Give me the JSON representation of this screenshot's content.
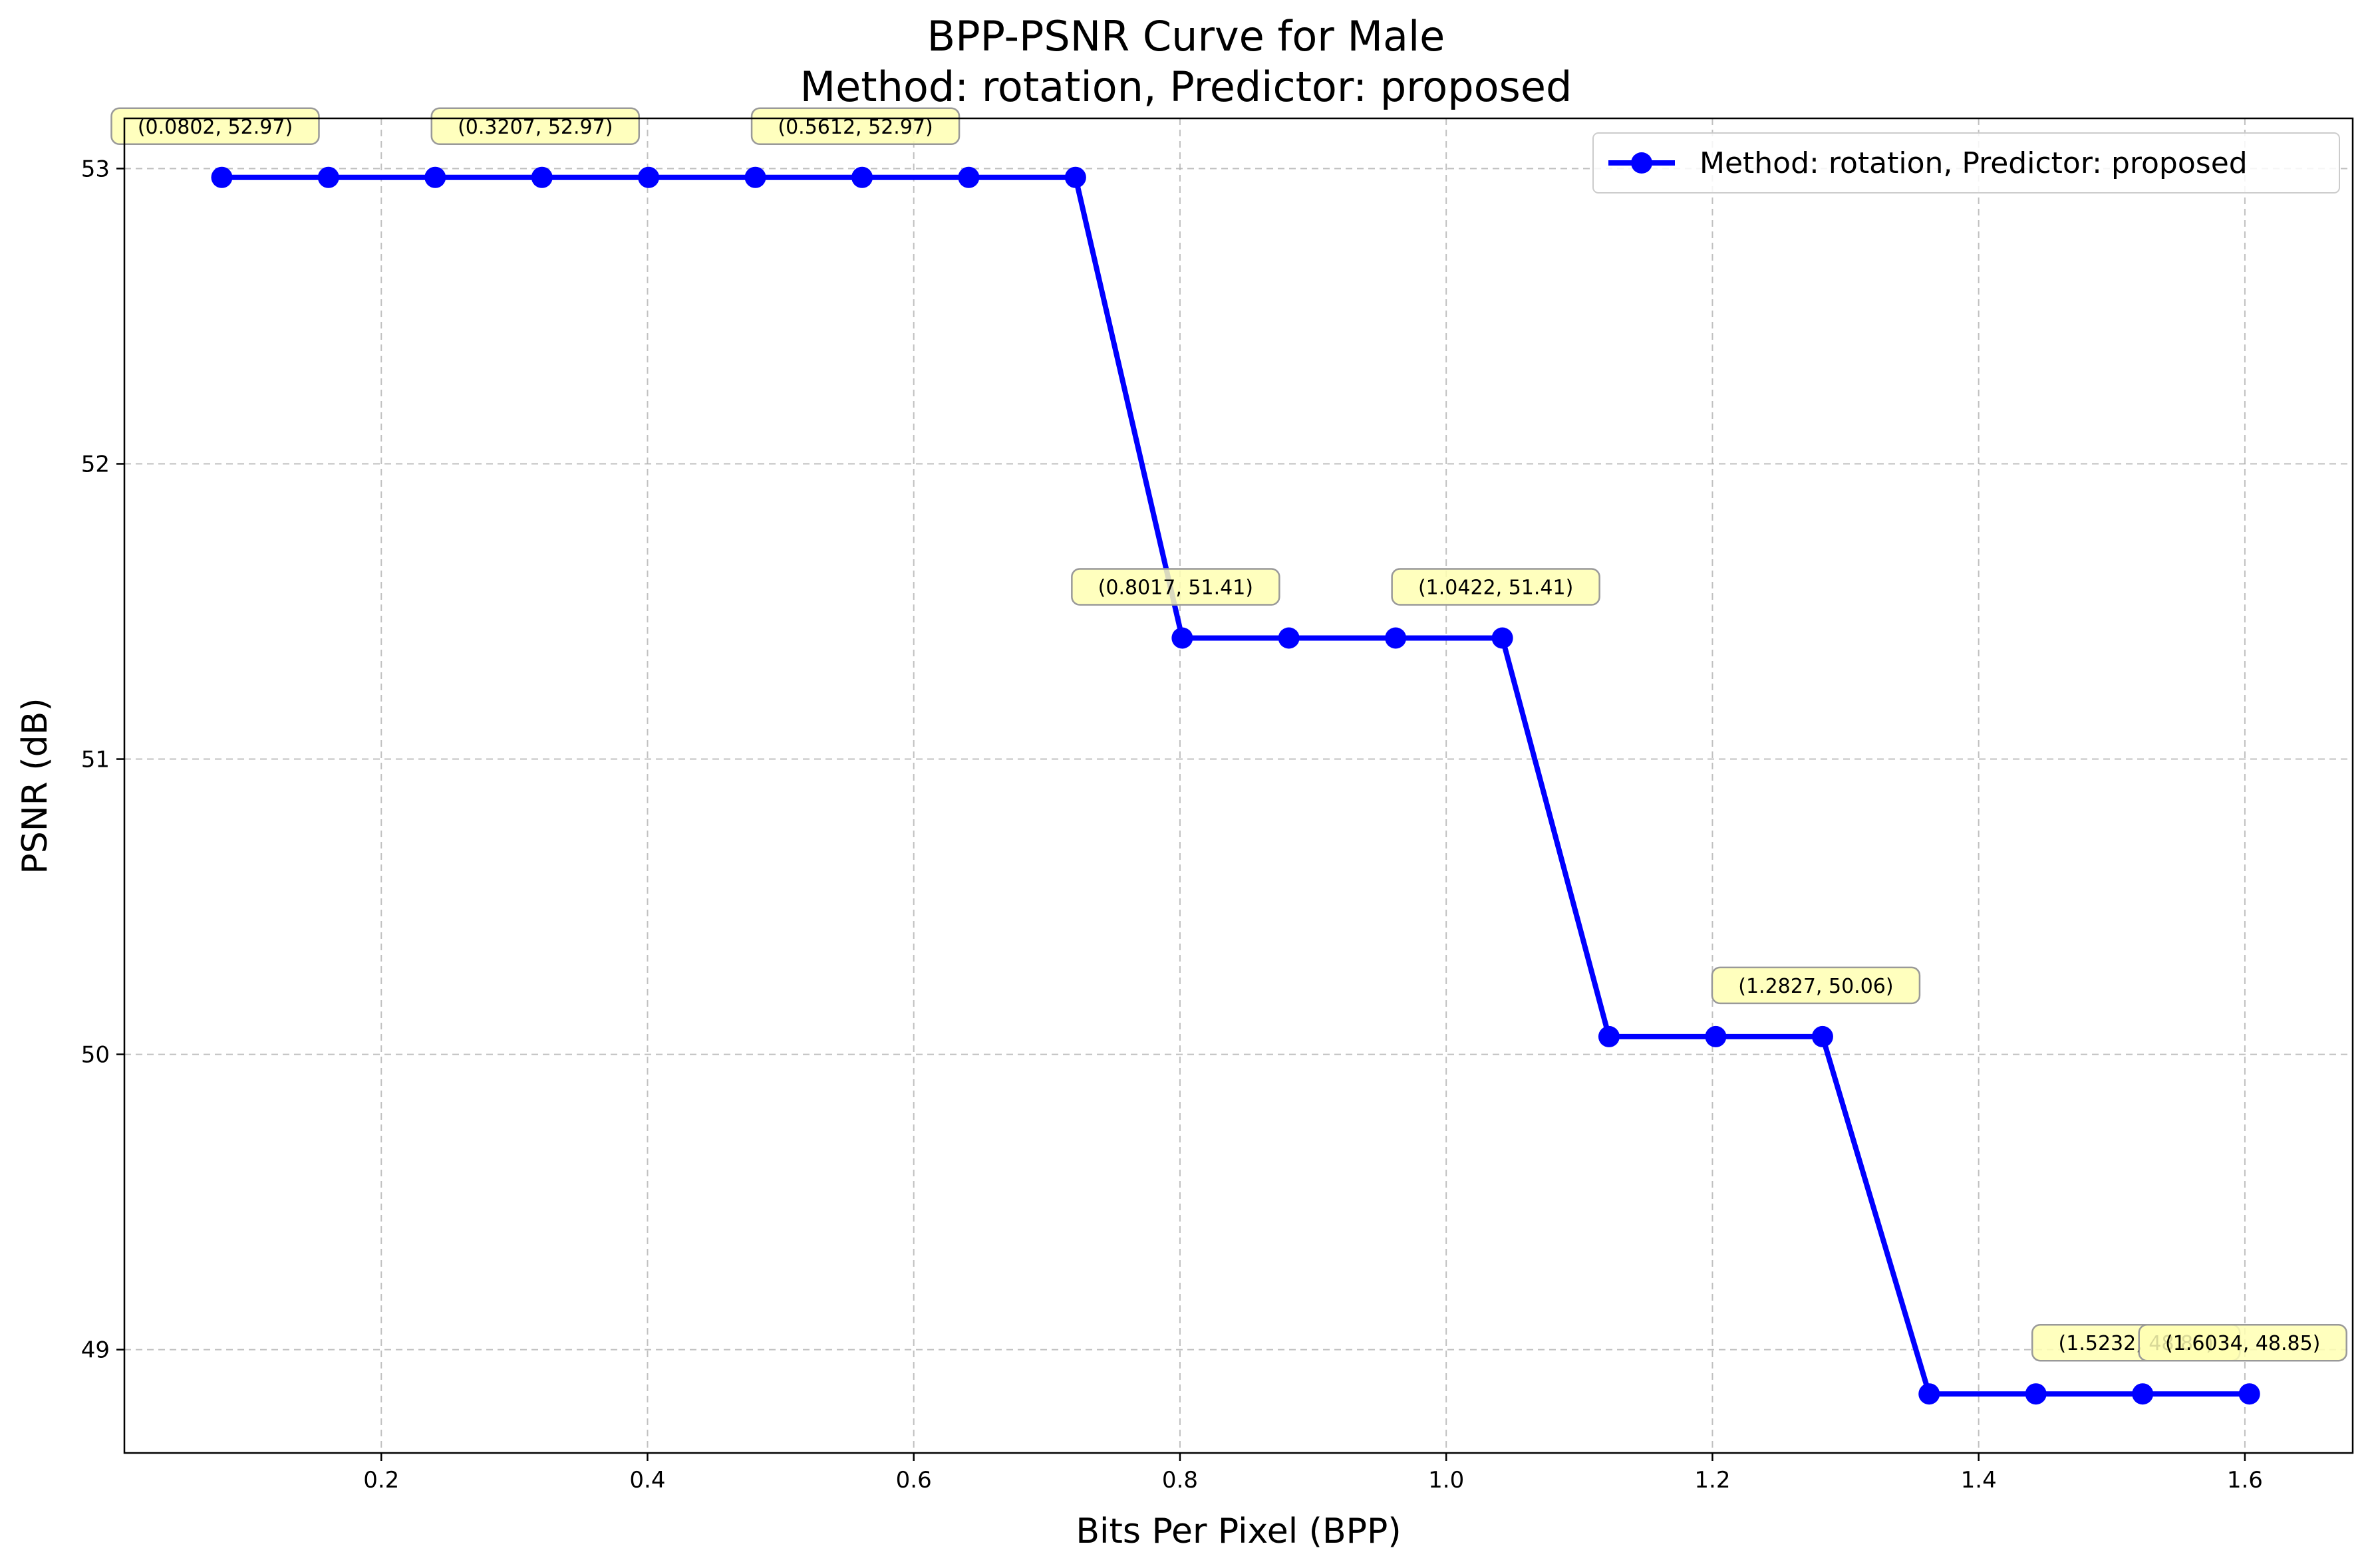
{
  "chart_data": {
    "type": "line",
    "title": "BPP-PSNR Curve for Male",
    "subtitle": "Method: rotation, Predictor: proposed",
    "xlabel": "Bits Per Pixel (BPP)",
    "ylabel": "PSNR (dB)",
    "xlim": [
      0.007,
      1.681
    ],
    "ylim": [
      48.65,
      53.17
    ],
    "xticks": [
      0.2,
      0.4,
      0.6,
      0.8,
      1.0,
      1.2,
      1.4,
      1.6
    ],
    "xtick_labels": [
      "0.2",
      "0.4",
      "0.6",
      "0.8",
      "1.0",
      "1.2",
      "1.4",
      "1.6"
    ],
    "yticks": [
      49,
      50,
      51,
      52,
      53
    ],
    "ytick_labels": [
      "49",
      "50",
      "51",
      "52",
      "53"
    ],
    "grid": true,
    "legend_position": "top-right",
    "series": [
      {
        "name": "Method: rotation, Predictor: proposed",
        "color": "#0000ff",
        "marker": "circle",
        "x": [
          0.0802,
          0.1603,
          0.2405,
          0.3207,
          0.4008,
          0.481,
          0.5612,
          0.6413,
          0.7215,
          0.8017,
          0.8818,
          0.962,
          1.0422,
          1.1223,
          1.2025,
          1.2827,
          1.3628,
          1.443,
          1.5232,
          1.6034
        ],
        "y": [
          52.97,
          52.97,
          52.97,
          52.97,
          52.97,
          52.97,
          52.97,
          52.97,
          52.97,
          51.41,
          51.41,
          51.41,
          51.41,
          50.06,
          50.06,
          50.06,
          48.85,
          48.85,
          48.85,
          48.85
        ]
      }
    ],
    "annotations": [
      {
        "x": 0.0802,
        "y": 52.97,
        "text": "(0.0802, 52.97)"
      },
      {
        "x": 0.3207,
        "y": 52.97,
        "text": "(0.3207, 52.97)"
      },
      {
        "x": 0.5612,
        "y": 52.97,
        "text": "(0.5612, 52.97)"
      },
      {
        "x": 0.8017,
        "y": 51.41,
        "text": "(0.8017, 51.41)"
      },
      {
        "x": 1.0422,
        "y": 51.41,
        "text": "(1.0422, 51.41)"
      },
      {
        "x": 1.2827,
        "y": 50.06,
        "text": "(1.2827, 50.06)"
      },
      {
        "x": 1.5232,
        "y": 48.85,
        "text": "(1.5232, 48.85)"
      },
      {
        "x": 1.6034,
        "y": 48.85,
        "text": "(1.6034, 48.85)"
      }
    ],
    "annotation_box_color": "#ffffb3",
    "grid_color": "#b0b0b0"
  }
}
